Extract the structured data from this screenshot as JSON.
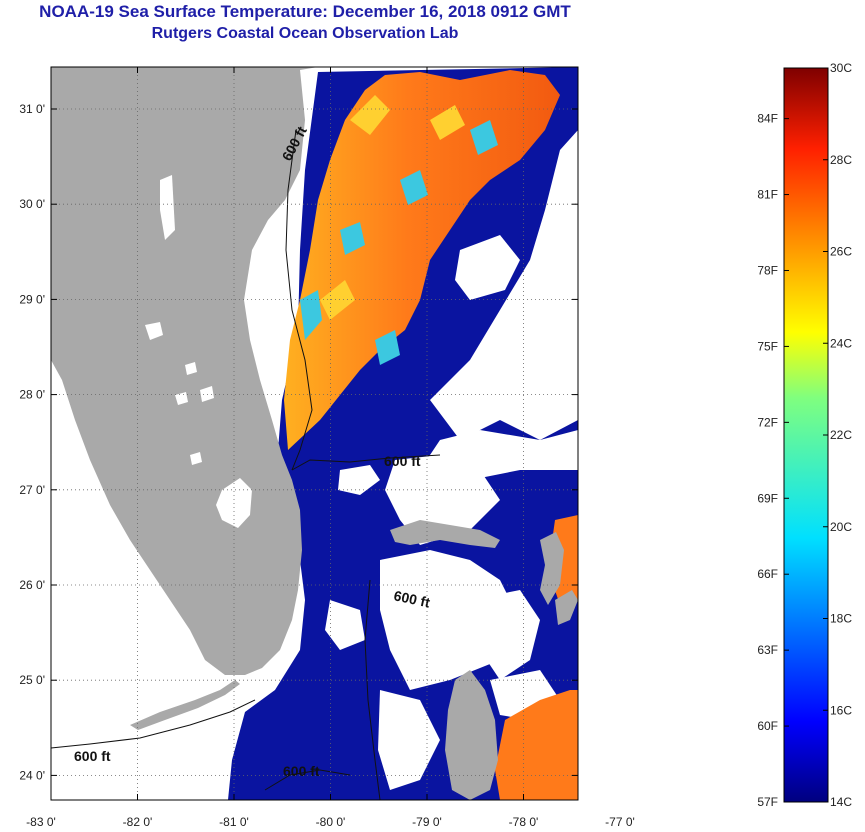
{
  "title": "NOAA-19 Sea Surface Temperature:  December 16, 2018 0912 GMT",
  "subtitle": "Rutgers Coastal Ocean Observation Lab",
  "map": {
    "lon_ticks": [
      "-83 0'",
      "-82 0'",
      "-81 0'",
      "-80 0'",
      "-79 0'",
      "-78 0'",
      "-77 0'"
    ],
    "lat_ticks": [
      "31 0'",
      "30 0'",
      "29 0'",
      "28 0'",
      "27 0'",
      "26 0'",
      "25 0'",
      "24 0'"
    ],
    "contour_labels": [
      "600 ft",
      "600 ft",
      "600 ft",
      "600 ft",
      "600 ft"
    ],
    "colors": {
      "land": "#a9a9a9",
      "cloud": "#ffffff",
      "cold": "#0a14a0",
      "warm": "#ff7a1a"
    }
  },
  "colorbar": {
    "fahrenheit_labels": [
      "84F",
      "81F",
      "78F",
      "75F",
      "72F",
      "69F",
      "66F",
      "63F",
      "60F",
      "57F"
    ],
    "celsius_labels": [
      "30C",
      "28C",
      "26C",
      "24C",
      "22C",
      "20C",
      "18C",
      "16C",
      "14C"
    ],
    "range_c": [
      14,
      30
    ],
    "range_f": [
      57,
      86
    ]
  }
}
